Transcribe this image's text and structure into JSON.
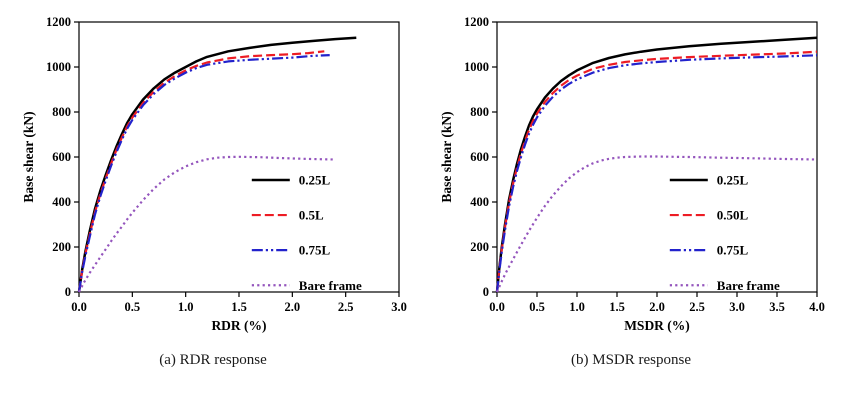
{
  "figure": {
    "captions": [
      "(a) RDR response",
      "(b) MSDR response"
    ]
  },
  "chart_data": [
    {
      "type": "line",
      "title": "",
      "xlabel": "RDR (%)",
      "ylabel": "Base shear (kN)",
      "xlim": [
        0,
        3.0
      ],
      "ylim": [
        0,
        1200
      ],
      "xticks": [
        "0.0",
        "0.5",
        "1.0",
        "1.5",
        "2.0",
        "2.5",
        "3.0"
      ],
      "yticks": [
        "0",
        "200",
        "400",
        "600",
        "800",
        "1000",
        "1200"
      ],
      "grid": false,
      "legend": {
        "position": "inside-lower-right",
        "x": 0.54,
        "y": 0.585,
        "dy": 0.13,
        "sample_len": 38
      },
      "series": [
        {
          "name": "0.25L",
          "color": "#000000",
          "dash": "solid",
          "width": 2.5,
          "points": [
            [
              0,
              0
            ],
            [
              0.03,
              100
            ],
            [
              0.06,
              180
            ],
            [
              0.1,
              270
            ],
            [
              0.15,
              370
            ],
            [
              0.2,
              450
            ],
            [
              0.25,
              520
            ],
            [
              0.3,
              585
            ],
            [
              0.35,
              645
            ],
            [
              0.4,
              700
            ],
            [
              0.45,
              750
            ],
            [
              0.5,
              790
            ],
            [
              0.6,
              855
            ],
            [
              0.7,
              905
            ],
            [
              0.8,
              945
            ],
            [
              0.9,
              975
            ],
            [
              1.0,
              1000
            ],
            [
              1.1,
              1025
            ],
            [
              1.2,
              1045
            ],
            [
              1.4,
              1070
            ],
            [
              1.6,
              1085
            ],
            [
              1.8,
              1098
            ],
            [
              2.0,
              1108
            ],
            [
              2.2,
              1116
            ],
            [
              2.4,
              1124
            ],
            [
              2.6,
              1130
            ]
          ]
        },
        {
          "name": "0.5L",
          "color": "#ed1c24",
          "dash": "dashed",
          "width": 2.2,
          "points": [
            [
              0,
              0
            ],
            [
              0.03,
              95
            ],
            [
              0.06,
              170
            ],
            [
              0.1,
              255
            ],
            [
              0.15,
              355
            ],
            [
              0.2,
              435
            ],
            [
              0.25,
              505
            ],
            [
              0.3,
              570
            ],
            [
              0.35,
              630
            ],
            [
              0.4,
              685
            ],
            [
              0.45,
              735
            ],
            [
              0.5,
              775
            ],
            [
              0.6,
              840
            ],
            [
              0.7,
              890
            ],
            [
              0.8,
              930
            ],
            [
              0.9,
              960
            ],
            [
              1.0,
              985
            ],
            [
              1.1,
              1005
            ],
            [
              1.2,
              1020
            ],
            [
              1.4,
              1038
            ],
            [
              1.6,
              1048
            ],
            [
              1.8,
              1053
            ],
            [
              2.0,
              1057
            ],
            [
              2.15,
              1062
            ],
            [
              2.3,
              1070
            ]
          ]
        },
        {
          "name": "0.75L",
          "color": "#2222cc",
          "dash": "dashdotdot",
          "width": 2.2,
          "points": [
            [
              0,
              0
            ],
            [
              0.03,
              90
            ],
            [
              0.06,
              160
            ],
            [
              0.1,
              245
            ],
            [
              0.15,
              345
            ],
            [
              0.2,
              425
            ],
            [
              0.25,
              495
            ],
            [
              0.3,
              560
            ],
            [
              0.35,
              620
            ],
            [
              0.4,
              675
            ],
            [
              0.45,
              725
            ],
            [
              0.5,
              765
            ],
            [
              0.6,
              830
            ],
            [
              0.7,
              880
            ],
            [
              0.8,
              920
            ],
            [
              0.9,
              950
            ],
            [
              1.0,
              975
            ],
            [
              1.1,
              995
            ],
            [
              1.2,
              1010
            ],
            [
              1.4,
              1025
            ],
            [
              1.6,
              1032
            ],
            [
              1.8,
              1037
            ],
            [
              2.0,
              1042
            ],
            [
              2.2,
              1050
            ],
            [
              2.35,
              1053
            ]
          ]
        },
        {
          "name": "Bare frame",
          "color": "#9455bd",
          "dash": "dotted",
          "width": 2.2,
          "points": [
            [
              0,
              0
            ],
            [
              0.05,
              45
            ],
            [
              0.1,
              85
            ],
            [
              0.15,
              120
            ],
            [
              0.2,
              155
            ],
            [
              0.25,
              190
            ],
            [
              0.3,
              225
            ],
            [
              0.35,
              258
            ],
            [
              0.4,
              290
            ],
            [
              0.45,
              322
            ],
            [
              0.5,
              352
            ],
            [
              0.6,
              408
            ],
            [
              0.7,
              458
            ],
            [
              0.8,
              500
            ],
            [
              0.9,
              533
            ],
            [
              1.0,
              558
            ],
            [
              1.1,
              577
            ],
            [
              1.2,
              590
            ],
            [
              1.3,
              597
            ],
            [
              1.4,
              600
            ],
            [
              1.5,
              601
            ],
            [
              1.7,
              599
            ],
            [
              1.9,
              595
            ],
            [
              2.1,
              592
            ],
            [
              2.3,
              590
            ],
            [
              2.4,
              589
            ]
          ]
        }
      ]
    },
    {
      "type": "line",
      "title": "",
      "xlabel": "MSDR (%)",
      "ylabel": "Base shear (kN)",
      "xlim": [
        0,
        4.0
      ],
      "ylim": [
        0,
        1200
      ],
      "xticks": [
        "0.0",
        "0.5",
        "1.0",
        "1.5",
        "2.0",
        "2.5",
        "3.0",
        "3.5",
        "4.0"
      ],
      "yticks": [
        "0",
        "200",
        "400",
        "600",
        "800",
        "1000",
        "1200"
      ],
      "grid": false,
      "legend": {
        "position": "inside-lower-right",
        "x": 0.54,
        "y": 0.585,
        "dy": 0.13,
        "sample_len": 38
      },
      "series": [
        {
          "name": "0.25L",
          "color": "#000000",
          "dash": "solid",
          "width": 2.5,
          "points": [
            [
              0,
              0
            ],
            [
              0.03,
              110
            ],
            [
              0.06,
              200
            ],
            [
              0.1,
              300
            ],
            [
              0.15,
              410
            ],
            [
              0.2,
              495
            ],
            [
              0.25,
              570
            ],
            [
              0.3,
              635
            ],
            [
              0.35,
              690
            ],
            [
              0.4,
              740
            ],
            [
              0.45,
              780
            ],
            [
              0.5,
              812
            ],
            [
              0.6,
              865
            ],
            [
              0.7,
              905
            ],
            [
              0.8,
              938
            ],
            [
              0.9,
              963
            ],
            [
              1.0,
              985
            ],
            [
              1.2,
              1018
            ],
            [
              1.4,
              1040
            ],
            [
              1.6,
              1056
            ],
            [
              1.8,
              1068
            ],
            [
              2.0,
              1078
            ],
            [
              2.4,
              1092
            ],
            [
              2.8,
              1103
            ],
            [
              3.2,
              1112
            ],
            [
              3.6,
              1121
            ],
            [
              4.0,
              1130
            ]
          ]
        },
        {
          "name": "0.50L",
          "color": "#ed1c24",
          "dash": "dashed",
          "width": 2.2,
          "points": [
            [
              0,
              0
            ],
            [
              0.03,
              105
            ],
            [
              0.06,
              190
            ],
            [
              0.1,
              288
            ],
            [
              0.15,
              395
            ],
            [
              0.2,
              480
            ],
            [
              0.25,
              553
            ],
            [
              0.3,
              617
            ],
            [
              0.35,
              672
            ],
            [
              0.4,
              720
            ],
            [
              0.45,
              760
            ],
            [
              0.5,
              793
            ],
            [
              0.6,
              845
            ],
            [
              0.7,
              885
            ],
            [
              0.8,
              917
            ],
            [
              0.9,
              942
            ],
            [
              1.0,
              962
            ],
            [
              1.2,
              992
            ],
            [
              1.4,
              1010
            ],
            [
              1.6,
              1022
            ],
            [
              1.8,
              1030
            ],
            [
              2.0,
              1036
            ],
            [
              2.4,
              1044
            ],
            [
              2.8,
              1050
            ],
            [
              3.2,
              1055
            ],
            [
              3.6,
              1060
            ],
            [
              4.0,
              1068
            ]
          ]
        },
        {
          "name": "0.75L",
          "color": "#2222cc",
          "dash": "dashdotdot",
          "width": 2.2,
          "points": [
            [
              0,
              0
            ],
            [
              0.03,
              95
            ],
            [
              0.06,
              180
            ],
            [
              0.1,
              275
            ],
            [
              0.15,
              380
            ],
            [
              0.2,
              465
            ],
            [
              0.25,
              538
            ],
            [
              0.3,
              600
            ],
            [
              0.35,
              655
            ],
            [
              0.4,
              703
            ],
            [
              0.45,
              743
            ],
            [
              0.5,
              776
            ],
            [
              0.6,
              828
            ],
            [
              0.7,
              868
            ],
            [
              0.8,
              900
            ],
            [
              0.9,
              925
            ],
            [
              1.0,
              945
            ],
            [
              1.2,
              975
            ],
            [
              1.4,
              995
            ],
            [
              1.6,
              1008
            ],
            [
              1.8,
              1016
            ],
            [
              2.0,
              1022
            ],
            [
              2.4,
              1032
            ],
            [
              2.8,
              1038
            ],
            [
              3.2,
              1043
            ],
            [
              3.6,
              1047
            ],
            [
              4.0,
              1052
            ]
          ]
        },
        {
          "name": "Bare frame",
          "color": "#9455bd",
          "dash": "dotted",
          "width": 2.2,
          "points": [
            [
              0,
              0
            ],
            [
              0.05,
              40
            ],
            [
              0.1,
              78
            ],
            [
              0.15,
              112
            ],
            [
              0.2,
              145
            ],
            [
              0.3,
              210
            ],
            [
              0.4,
              272
            ],
            [
              0.5,
              330
            ],
            [
              0.6,
              383
            ],
            [
              0.7,
              430
            ],
            [
              0.8,
              470
            ],
            [
              0.9,
              505
            ],
            [
              1.0,
              533
            ],
            [
              1.1,
              555
            ],
            [
              1.2,
              572
            ],
            [
              1.3,
              584
            ],
            [
              1.4,
              592
            ],
            [
              1.5,
              597
            ],
            [
              1.6,
              600
            ],
            [
              1.8,
              602
            ],
            [
              2.0,
              602
            ],
            [
              2.2,
              601
            ],
            [
              2.4,
              600
            ],
            [
              2.8,
              597
            ],
            [
              3.2,
              594
            ],
            [
              3.6,
              591
            ],
            [
              4.0,
              589
            ]
          ]
        }
      ]
    }
  ]
}
